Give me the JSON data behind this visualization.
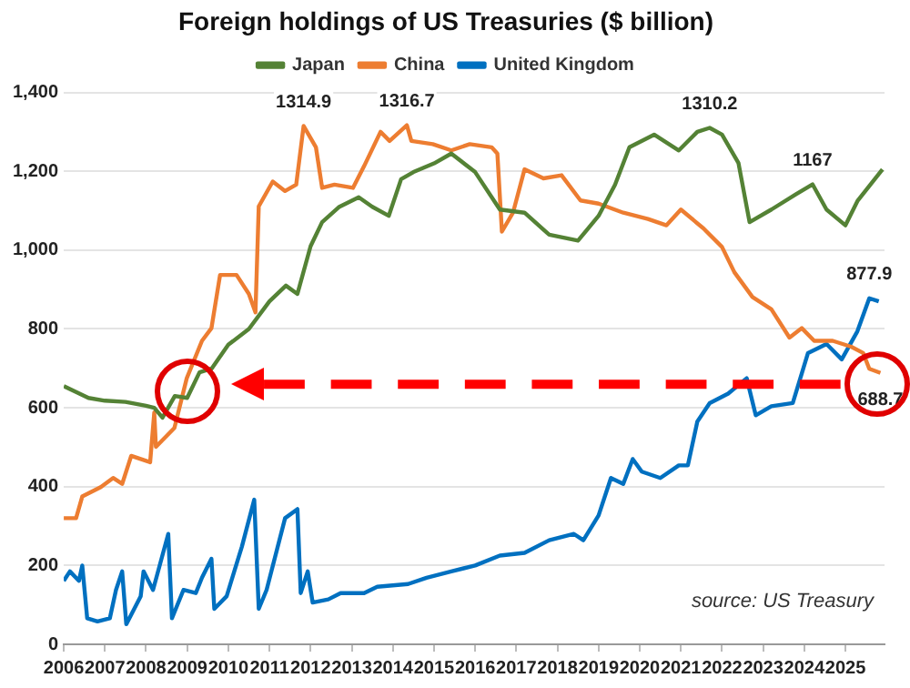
{
  "chart_data": {
    "type": "line",
    "title": "Foreign holdings of US Treasuries ($ billion)",
    "xlim": [
      2006,
      2025.95
    ],
    "xticks": [
      {
        "value": 2006,
        "label": "2006"
      },
      {
        "value": 2007,
        "label": "2007"
      },
      {
        "value": 2008,
        "label": "2008"
      },
      {
        "value": 2009,
        "label": "2009"
      },
      {
        "value": 2010,
        "label": "2010"
      },
      {
        "value": 2011,
        "label": "2011"
      },
      {
        "value": 2012,
        "label": "2012"
      },
      {
        "value": 2013,
        "label": "2013"
      },
      {
        "value": 2014,
        "label": "2014"
      },
      {
        "value": 2015,
        "label": "2015"
      },
      {
        "value": 2016,
        "label": "2016"
      },
      {
        "value": 2017,
        "label": "2017"
      },
      {
        "value": 2018,
        "label": "2018"
      },
      {
        "value": 2019,
        "label": "2019"
      },
      {
        "value": 2020,
        "label": "2020"
      },
      {
        "value": 2021,
        "label": "2021"
      },
      {
        "value": 2022,
        "label": "2022"
      },
      {
        "value": 2023,
        "label": "2023"
      },
      {
        "value": 2024,
        "label": "2024"
      },
      {
        "value": 2025,
        "label": "2025"
      }
    ],
    "ylim": [
      0,
      1400
    ],
    "yticks": [
      0,
      200,
      400,
      600,
      800,
      {
        "value": 1000,
        "label": "1,000"
      },
      {
        "value": 1200,
        "label": "1,200"
      },
      {
        "value": 1400,
        "label": "1,400"
      }
    ],
    "grid": "y",
    "legend": "top",
    "marker": "none",
    "line_style": "solid",
    "series": [
      {
        "name": "Japan",
        "color": "#548235",
        "x": [
          2006.0,
          2006.3,
          2006.6,
          2007.0,
          2007.5,
          2008.0,
          2008.2,
          2008.4,
          2008.7,
          2009.0,
          2009.3,
          2009.6,
          2010.0,
          2010.5,
          2011.0,
          2011.4,
          2011.68,
          2012.0,
          2012.28,
          2012.7,
          2013.17,
          2013.5,
          2013.9,
          2014.2,
          2014.5,
          2015.0,
          2015.42,
          2016.0,
          2016.6,
          2017.2,
          2017.8,
          2018.5,
          2019.0,
          2019.4,
          2019.75,
          2020.35,
          2020.95,
          2021.4,
          2021.7,
          2022.0,
          2022.4,
          2022.67,
          2023.2,
          2023.8,
          2024.2,
          2024.54,
          2025.0,
          2025.3,
          2025.9
        ],
        "values": [
          655,
          640,
          625,
          618,
          615,
          605,
          600,
          575,
          630,
          625,
          690,
          700,
          760,
          800,
          870,
          910,
          889,
          1010,
          1071,
          1110,
          1134,
          1110,
          1087,
          1180,
          1198,
          1220,
          1245,
          1198,
          1103,
          1095,
          1039,
          1024,
          1087,
          1166,
          1261,
          1293,
          1253,
          1300,
          1310.2,
          1293,
          1221,
          1071,
          1103,
          1142,
          1167,
          1103,
          1063,
          1126,
          1205
        ]
      },
      {
        "name": "China",
        "color": "#ed7d31",
        "x": [
          2006.0,
          2006.3,
          2006.45,
          2006.9,
          2007.2,
          2007.42,
          2007.64,
          2008.1,
          2008.2,
          2008.24,
          2008.69,
          2008.99,
          2009.36,
          2009.59,
          2009.8,
          2010.2,
          2010.5,
          2010.66,
          2010.74,
          2011.08,
          2011.38,
          2011.65,
          2011.83,
          2012.13,
          2012.28,
          2012.58,
          2013.03,
          2013.3,
          2013.7,
          2013.92,
          2014.34,
          2014.45,
          2014.97,
          2015.42,
          2015.87,
          2016.4,
          2016.54,
          2016.65,
          2016.92,
          2017.2,
          2017.66,
          2018.1,
          2018.56,
          2019.0,
          2019.6,
          2020.2,
          2020.65,
          2021.0,
          2021.55,
          2022.0,
          2022.3,
          2022.74,
          2023.2,
          2023.64,
          2023.94,
          2024.24,
          2024.69,
          2025.14,
          2025.43,
          2025.58,
          2025.85
        ],
        "values": [
          320,
          320,
          375,
          399,
          422,
          407,
          478,
          462,
          588,
          501,
          549,
          675,
          770,
          802,
          937,
          937,
          889,
          842,
          1111,
          1174,
          1150,
          1166,
          1314.9,
          1261,
          1158,
          1166,
          1158,
          1213,
          1300,
          1277,
          1316.7,
          1277,
          1269,
          1253,
          1269,
          1261,
          1245,
          1047,
          1095,
          1205,
          1182,
          1190,
          1126,
          1118,
          1095,
          1079,
          1063,
          1103,
          1055,
          1008,
          944,
          881,
          850,
          778,
          802,
          770,
          770,
          755,
          739,
          699,
          688.7
        ]
      },
      {
        "name": "United Kingdom",
        "color": "#0070c0",
        "x": [
          2006.0,
          2006.15,
          2006.37,
          2006.45,
          2006.57,
          2006.82,
          2007.12,
          2007.27,
          2007.42,
          2007.52,
          2007.87,
          2007.94,
          2008.17,
          2008.54,
          2008.63,
          2008.91,
          2009.21,
          2009.36,
          2009.59,
          2009.66,
          2009.96,
          2010.33,
          2010.63,
          2010.74,
          2010.93,
          2011.38,
          2011.68,
          2011.76,
          2011.93,
          2012.05,
          2012.43,
          2012.73,
          2013.3,
          2013.62,
          2014.37,
          2014.82,
          2015.42,
          2016.0,
          2016.6,
          2017.2,
          2017.8,
          2018.4,
          2018.63,
          2019.0,
          2019.3,
          2019.6,
          2019.83,
          2020.05,
          2020.5,
          2020.95,
          2021.17,
          2021.4,
          2021.7,
          2022.15,
          2022.6,
          2022.82,
          2023.2,
          2023.72,
          2024.09,
          2024.54,
          2024.91,
          2025.29,
          2025.58,
          2025.81
        ],
        "values": [
          161,
          185,
          161,
          200,
          66,
          58,
          66,
          138,
          185,
          51,
          122,
          185,
          138,
          280,
          66,
          138,
          130,
          169,
          217,
          90,
          122,
          248,
          367,
          90,
          138,
          320,
          343,
          130,
          185,
          106,
          114,
          130,
          130,
          146,
          153,
          169,
          185,
          200,
          225,
          232,
          264,
          280,
          264,
          327,
          422,
          407,
          470,
          438,
          422,
          454,
          454,
          565,
          612,
          636,
          675,
          581,
          604,
          612,
          739,
          762,
          723,
          794,
          877.9,
          870
        ]
      }
    ],
    "ref_lines": [
      {
        "axis": "y",
        "value": 660,
        "color": "#ff0000",
        "line_style": "dashed"
      }
    ],
    "annotations": [
      {
        "text": "1314.9",
        "x": 2011.83,
        "y": 1314.9
      },
      {
        "text": "1316.7",
        "x": 2014.34,
        "y": 1316.7
      },
      {
        "text": "1310.2",
        "x": 2021.7,
        "y": 1310.2
      },
      {
        "text": "1167",
        "x": 2024.2,
        "y": 1167
      },
      {
        "text": "877.9",
        "x": 2025.58,
        "y": 877.9
      },
      {
        "text": "688.7",
        "x": 2025.85,
        "y": 688.7
      },
      "source: US Treasury"
    ]
  }
}
